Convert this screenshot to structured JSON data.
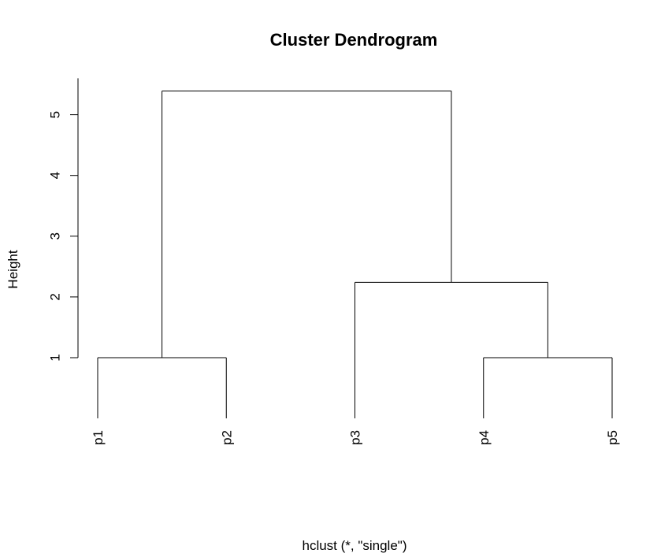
{
  "chart_data": {
    "type": "dendrogram",
    "title": "Cluster Dendrogram",
    "xlabel": "hclust (*, \"single\")",
    "ylabel": "Height",
    "ylim": [
      0,
      5.6
    ],
    "yticks": [
      1,
      2,
      3,
      4,
      5
    ],
    "leaves": [
      "p1",
      "p2",
      "p3",
      "p4",
      "p5"
    ],
    "merges": [
      {
        "left": "p1",
        "right": "p2",
        "height": 1.0
      },
      {
        "left": "p4",
        "right": "p5",
        "height": 1.0
      },
      {
        "left": "p3",
        "right": "p4+p5",
        "height": 2.24
      },
      {
        "left": "p1+p2",
        "right": "p3+p4+p5",
        "height": 5.39
      }
    ],
    "colors": {
      "line": "#000000",
      "background": "#ffffff"
    }
  }
}
